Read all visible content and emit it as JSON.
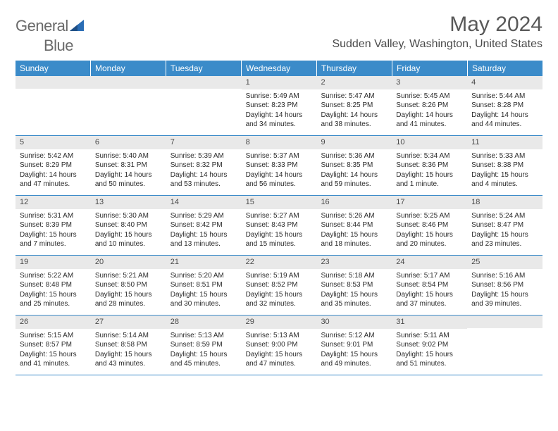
{
  "brand": {
    "part1": "General",
    "part2": "Blue"
  },
  "title": "May 2024",
  "location": "Sudden Valley, Washington, United States",
  "colors": {
    "header_blue": "#3b8bc9",
    "logo_gray": "#6a6a6a",
    "logo_blue": "#2a6db5",
    "title_gray": "#595959",
    "daynum_bg": "#e9e9e9",
    "row_border": "#3b8bc9"
  },
  "day_headers": [
    "Sunday",
    "Monday",
    "Tuesday",
    "Wednesday",
    "Thursday",
    "Friday",
    "Saturday"
  ],
  "weeks": [
    [
      null,
      null,
      null,
      {
        "n": "1",
        "sr": "Sunrise: 5:49 AM",
        "ss": "Sunset: 8:23 PM",
        "dl": "Daylight: 14 hours and 34 minutes."
      },
      {
        "n": "2",
        "sr": "Sunrise: 5:47 AM",
        "ss": "Sunset: 8:25 PM",
        "dl": "Daylight: 14 hours and 38 minutes."
      },
      {
        "n": "3",
        "sr": "Sunrise: 5:45 AM",
        "ss": "Sunset: 8:26 PM",
        "dl": "Daylight: 14 hours and 41 minutes."
      },
      {
        "n": "4",
        "sr": "Sunrise: 5:44 AM",
        "ss": "Sunset: 8:28 PM",
        "dl": "Daylight: 14 hours and 44 minutes."
      }
    ],
    [
      {
        "n": "5",
        "sr": "Sunrise: 5:42 AM",
        "ss": "Sunset: 8:29 PM",
        "dl": "Daylight: 14 hours and 47 minutes."
      },
      {
        "n": "6",
        "sr": "Sunrise: 5:40 AM",
        "ss": "Sunset: 8:31 PM",
        "dl": "Daylight: 14 hours and 50 minutes."
      },
      {
        "n": "7",
        "sr": "Sunrise: 5:39 AM",
        "ss": "Sunset: 8:32 PM",
        "dl": "Daylight: 14 hours and 53 minutes."
      },
      {
        "n": "8",
        "sr": "Sunrise: 5:37 AM",
        "ss": "Sunset: 8:33 PM",
        "dl": "Daylight: 14 hours and 56 minutes."
      },
      {
        "n": "9",
        "sr": "Sunrise: 5:36 AM",
        "ss": "Sunset: 8:35 PM",
        "dl": "Daylight: 14 hours and 59 minutes."
      },
      {
        "n": "10",
        "sr": "Sunrise: 5:34 AM",
        "ss": "Sunset: 8:36 PM",
        "dl": "Daylight: 15 hours and 1 minute."
      },
      {
        "n": "11",
        "sr": "Sunrise: 5:33 AM",
        "ss": "Sunset: 8:38 PM",
        "dl": "Daylight: 15 hours and 4 minutes."
      }
    ],
    [
      {
        "n": "12",
        "sr": "Sunrise: 5:31 AM",
        "ss": "Sunset: 8:39 PM",
        "dl": "Daylight: 15 hours and 7 minutes."
      },
      {
        "n": "13",
        "sr": "Sunrise: 5:30 AM",
        "ss": "Sunset: 8:40 PM",
        "dl": "Daylight: 15 hours and 10 minutes."
      },
      {
        "n": "14",
        "sr": "Sunrise: 5:29 AM",
        "ss": "Sunset: 8:42 PM",
        "dl": "Daylight: 15 hours and 13 minutes."
      },
      {
        "n": "15",
        "sr": "Sunrise: 5:27 AM",
        "ss": "Sunset: 8:43 PM",
        "dl": "Daylight: 15 hours and 15 minutes."
      },
      {
        "n": "16",
        "sr": "Sunrise: 5:26 AM",
        "ss": "Sunset: 8:44 PM",
        "dl": "Daylight: 15 hours and 18 minutes."
      },
      {
        "n": "17",
        "sr": "Sunrise: 5:25 AM",
        "ss": "Sunset: 8:46 PM",
        "dl": "Daylight: 15 hours and 20 minutes."
      },
      {
        "n": "18",
        "sr": "Sunrise: 5:24 AM",
        "ss": "Sunset: 8:47 PM",
        "dl": "Daylight: 15 hours and 23 minutes."
      }
    ],
    [
      {
        "n": "19",
        "sr": "Sunrise: 5:22 AM",
        "ss": "Sunset: 8:48 PM",
        "dl": "Daylight: 15 hours and 25 minutes."
      },
      {
        "n": "20",
        "sr": "Sunrise: 5:21 AM",
        "ss": "Sunset: 8:50 PM",
        "dl": "Daylight: 15 hours and 28 minutes."
      },
      {
        "n": "21",
        "sr": "Sunrise: 5:20 AM",
        "ss": "Sunset: 8:51 PM",
        "dl": "Daylight: 15 hours and 30 minutes."
      },
      {
        "n": "22",
        "sr": "Sunrise: 5:19 AM",
        "ss": "Sunset: 8:52 PM",
        "dl": "Daylight: 15 hours and 32 minutes."
      },
      {
        "n": "23",
        "sr": "Sunrise: 5:18 AM",
        "ss": "Sunset: 8:53 PM",
        "dl": "Daylight: 15 hours and 35 minutes."
      },
      {
        "n": "24",
        "sr": "Sunrise: 5:17 AM",
        "ss": "Sunset: 8:54 PM",
        "dl": "Daylight: 15 hours and 37 minutes."
      },
      {
        "n": "25",
        "sr": "Sunrise: 5:16 AM",
        "ss": "Sunset: 8:56 PM",
        "dl": "Daylight: 15 hours and 39 minutes."
      }
    ],
    [
      {
        "n": "26",
        "sr": "Sunrise: 5:15 AM",
        "ss": "Sunset: 8:57 PM",
        "dl": "Daylight: 15 hours and 41 minutes."
      },
      {
        "n": "27",
        "sr": "Sunrise: 5:14 AM",
        "ss": "Sunset: 8:58 PM",
        "dl": "Daylight: 15 hours and 43 minutes."
      },
      {
        "n": "28",
        "sr": "Sunrise: 5:13 AM",
        "ss": "Sunset: 8:59 PM",
        "dl": "Daylight: 15 hours and 45 minutes."
      },
      {
        "n": "29",
        "sr": "Sunrise: 5:13 AM",
        "ss": "Sunset: 9:00 PM",
        "dl": "Daylight: 15 hours and 47 minutes."
      },
      {
        "n": "30",
        "sr": "Sunrise: 5:12 AM",
        "ss": "Sunset: 9:01 PM",
        "dl": "Daylight: 15 hours and 49 minutes."
      },
      {
        "n": "31",
        "sr": "Sunrise: 5:11 AM",
        "ss": "Sunset: 9:02 PM",
        "dl": "Daylight: 15 hours and 51 minutes."
      },
      null
    ]
  ]
}
